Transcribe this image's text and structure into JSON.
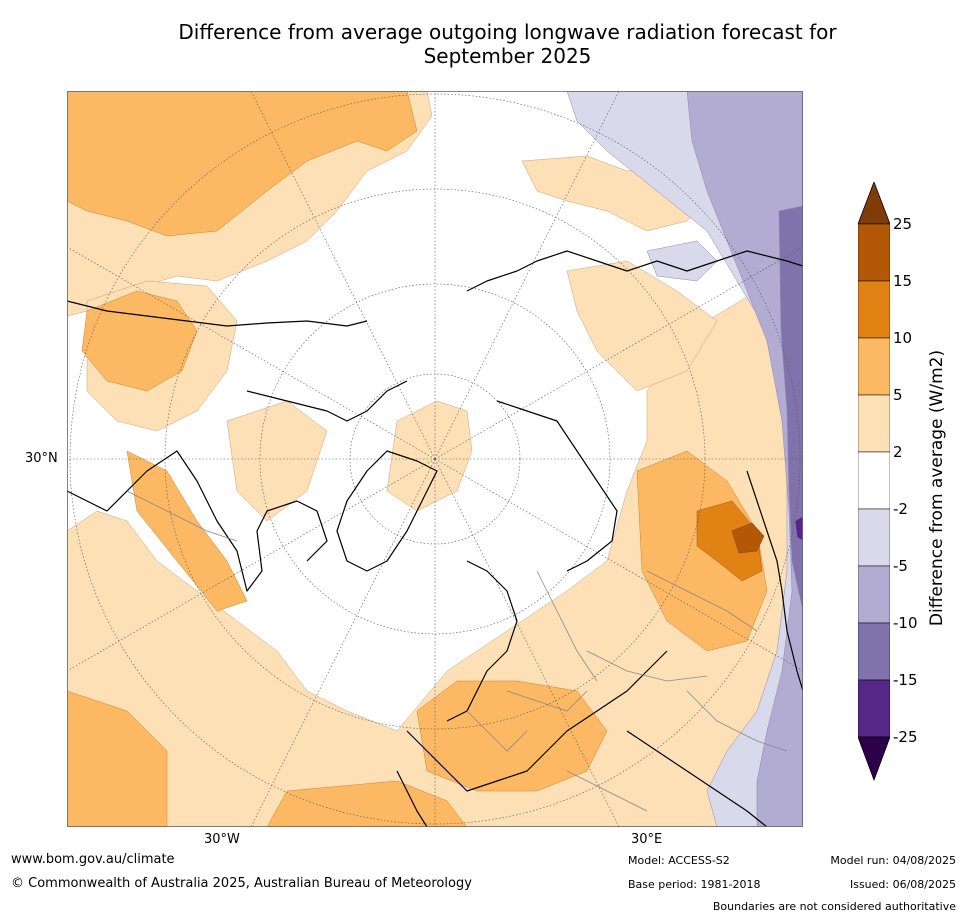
{
  "title_line1": "Difference from average outgoing longwave radiation forecast for",
  "title_line2": "September 2025",
  "map": {
    "projection": "north polar stereographic",
    "lat_label": "30°N",
    "lon_label_west": "30°W",
    "lon_label_east": "30°E"
  },
  "colorbar": {
    "label": "Difference from average (W/m2)",
    "ticks": [
      "25",
      "15",
      "10",
      "5",
      "2",
      "-2",
      "-5",
      "-10",
      "-15",
      "-25"
    ],
    "colors": {
      "above_25": "#7f3b08",
      "15_25": "#b35806",
      "10_15": "#e08214",
      "5_10": "#fdb863",
      "2_5": "#fee0b6",
      "neutral": "#ffffff",
      "-5_-2": "#d8daeb",
      "-10_-5": "#b2abd2",
      "-15_-10": "#8073ac",
      "-25_-15": "#542788",
      "below_-25": "#2d004b"
    }
  },
  "footer": {
    "url": "www.bom.gov.au/climate",
    "copyright": "© Commonwealth of Australia 2025, Australian Bureau of Meteorology",
    "model": "Model: ACCESS-S2",
    "base_period": "Base period: 1981-2018",
    "model_run": "Model run: 04/08/2025",
    "issued": "Issued: 06/08/2025",
    "disclaimer": "Boundaries are not considered authoritative"
  }
}
